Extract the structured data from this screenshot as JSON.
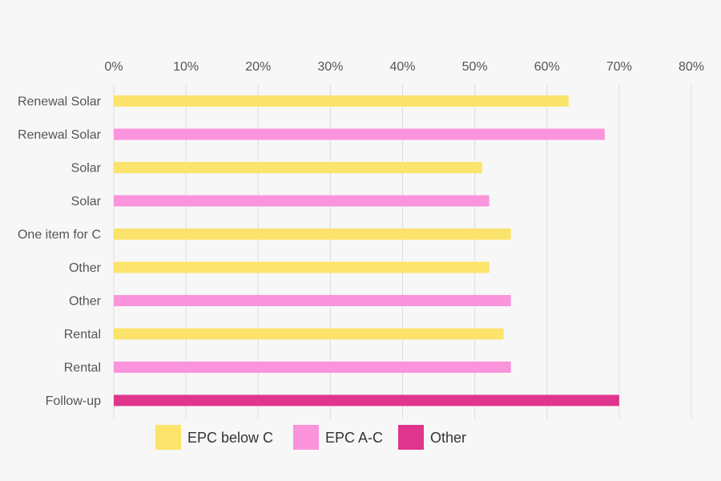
{
  "chart_data": {
    "type": "bar",
    "orientation": "horizontal",
    "x_axis_position": "top",
    "grid": true,
    "legend_position": "bottom-left",
    "xlim": [
      0,
      80
    ],
    "x_ticks": [
      "0%",
      "10%",
      "20%",
      "30%",
      "40%",
      "50%",
      "60%",
      "70%",
      "80%"
    ],
    "x_tick_values": [
      0,
      10,
      20,
      30,
      40,
      50,
      60,
      70,
      80
    ],
    "legend": [
      {
        "name": "EPC below C",
        "color": "#fce36b"
      },
      {
        "name": "EPC A-C",
        "color": "#fb94dc"
      },
      {
        "name": "Other",
        "color": "#e0358c"
      }
    ],
    "bars": [
      {
        "category": "Renewal Solar",
        "series": "EPC below C",
        "value": 63
      },
      {
        "category": "Renewal Solar",
        "series": "EPC A-C",
        "value": 68
      },
      {
        "category": "Solar",
        "series": "EPC below C",
        "value": 51
      },
      {
        "category": "Solar",
        "series": "EPC A-C",
        "value": 52
      },
      {
        "category": "One item for C",
        "series": "EPC below C",
        "value": 55
      },
      {
        "category": "Other",
        "series": "EPC below C",
        "value": 52
      },
      {
        "category": "Other",
        "series": "EPC A-C",
        "value": 55
      },
      {
        "category": "Rental",
        "series": "EPC below C",
        "value": 54
      },
      {
        "category": "Rental",
        "series": "EPC A-C",
        "value": 55
      },
      {
        "category": "Follow-up",
        "series": "Other",
        "value": 70
      }
    ]
  }
}
